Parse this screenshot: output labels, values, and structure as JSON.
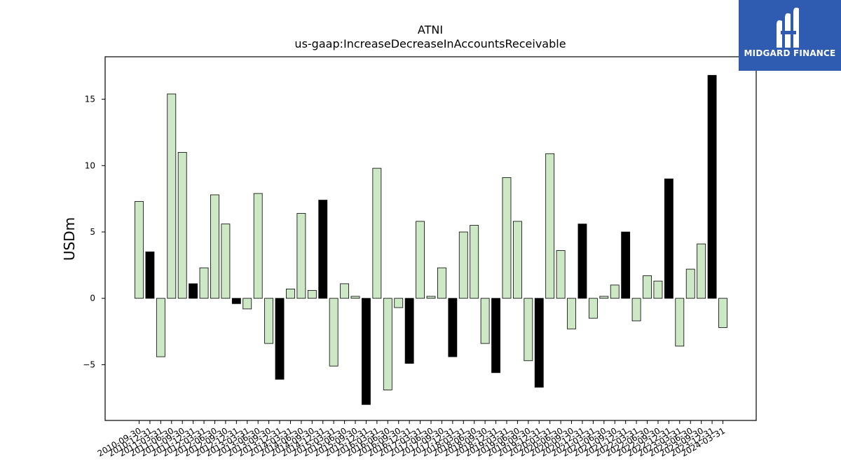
{
  "chart_data": {
    "type": "bar",
    "title": "ATNI",
    "subtitle": "us-gaap:IncreaseDecreaseInAccountsReceivable",
    "xlabel": "",
    "ylabel": "USDm",
    "ylim": [
      -9.2,
      18.2
    ],
    "yticks": [
      -5,
      0,
      5,
      10,
      15
    ],
    "grid": false,
    "colors": {
      "quarter": "#cce8c5",
      "annual": "#000000",
      "edge": "#000000"
    },
    "categories": [
      "2010-09-30",
      "2010-12-31",
      "2011-03-31",
      "2011-06-30",
      "2011-09-30",
      "2011-12-31",
      "2012-03-31",
      "2012-06-30",
      "2012-09-30",
      "2012-12-31",
      "2013-03-31",
      "2013-06-30",
      "2013-09-30",
      "2013-12-31",
      "2014-03-31",
      "2014-06-30",
      "2014-09-30",
      "2014-12-31",
      "2015-03-31",
      "2015-06-30",
      "2015-09-30",
      "2015-12-31",
      "2016-03-31",
      "2016-06-30",
      "2016-09-30",
      "2016-12-31",
      "2017-03-31",
      "2017-06-30",
      "2017-09-30",
      "2017-12-31",
      "2018-03-31",
      "2018-06-30",
      "2018-09-30",
      "2018-12-31",
      "2019-03-31",
      "2019-06-30",
      "2019-09-30",
      "2019-12-31",
      "2020-03-31",
      "2020-06-30",
      "2020-09-30",
      "2020-12-31",
      "2021-03-31",
      "2021-06-30",
      "2021-09-30",
      "2021-12-31",
      "2022-03-31",
      "2022-06-30",
      "2022-09-30",
      "2022-12-31",
      "2023-03-31",
      "2023-06-30",
      "2023-09-30",
      "2023-12-31",
      "2024-03-31"
    ],
    "values": [
      7.3,
      3.5,
      -4.4,
      15.4,
      11.0,
      1.1,
      2.3,
      7.8,
      5.6,
      -0.4,
      -0.8,
      7.9,
      -3.4,
      -6.1,
      0.7,
      6.4,
      0.6,
      7.4,
      -5.1,
      1.1,
      0.15,
      -8.0,
      9.8,
      -6.9,
      -0.7,
      -4.9,
      5.8,
      0.15,
      2.3,
      -4.4,
      5.0,
      5.5,
      -3.4,
      -5.6,
      9.1,
      5.8,
      -4.7,
      -6.7,
      10.9,
      3.6,
      -2.3,
      5.6,
      -1.5,
      0.15,
      1.0,
      5.0,
      -1.7,
      1.7,
      1.3,
      9.0,
      -3.6,
      2.2,
      4.1,
      16.8,
      -2.2
    ],
    "annual": [
      false,
      true,
      false,
      false,
      false,
      true,
      false,
      false,
      false,
      true,
      false,
      false,
      false,
      true,
      false,
      false,
      false,
      true,
      false,
      false,
      false,
      true,
      false,
      false,
      false,
      true,
      false,
      false,
      false,
      true,
      false,
      false,
      false,
      true,
      false,
      false,
      false,
      true,
      false,
      false,
      false,
      true,
      false,
      false,
      false,
      true,
      false,
      false,
      false,
      true,
      false,
      false,
      false,
      true,
      false
    ]
  },
  "logo": {
    "text": "MIDGARD FINANCE",
    "color": "#2f5bb0"
  }
}
